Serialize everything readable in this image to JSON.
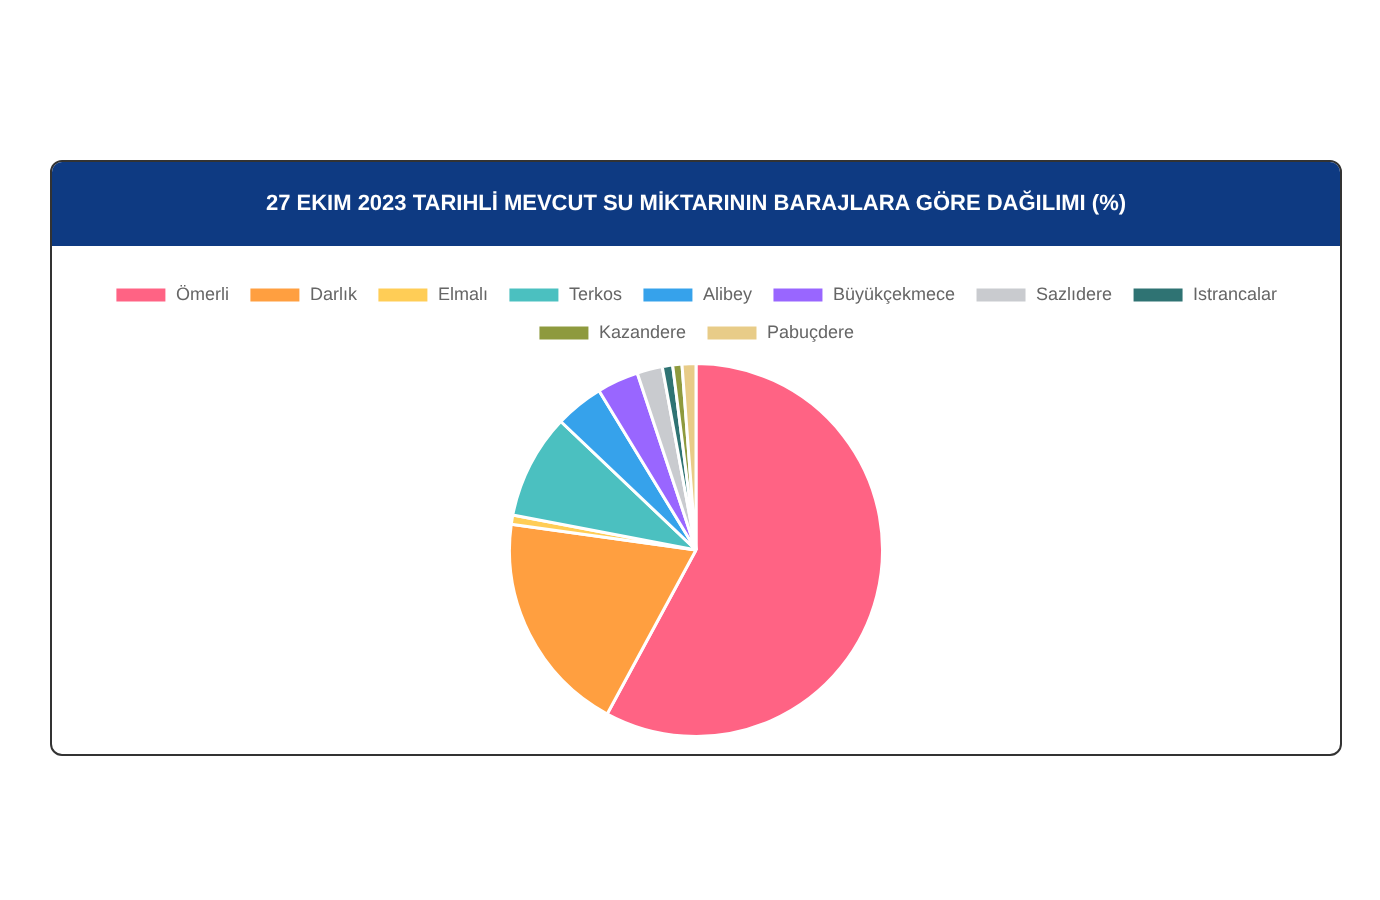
{
  "chart_data": {
    "type": "pie",
    "title": "27 EKIM 2023 TARIHLİ MEVCUT SU MİKTARININ BARAJLARA GÖRE DAĞILIMI (%)",
    "categories": [
      "Ömerli",
      "Darlık",
      "Elmalı",
      "Terkos",
      "Alibey",
      "Büyükçekmece",
      "Sazlıdere",
      "Istrancalar",
      "Kazandere",
      "Pabuçdere"
    ],
    "values": [
      57.9,
      19.3,
      0.8,
      9.1,
      4.2,
      3.6,
      2.2,
      0.9,
      0.8,
      1.2
    ],
    "colors": [
      "#ff6384",
      "#ff9f40",
      "#ffcd56",
      "#4bc0c0",
      "#36a2eb",
      "#9966ff",
      "#c9cbcf",
      "#2f7373",
      "#8e9a3e",
      "#e8cc88"
    ],
    "legend": "top"
  }
}
